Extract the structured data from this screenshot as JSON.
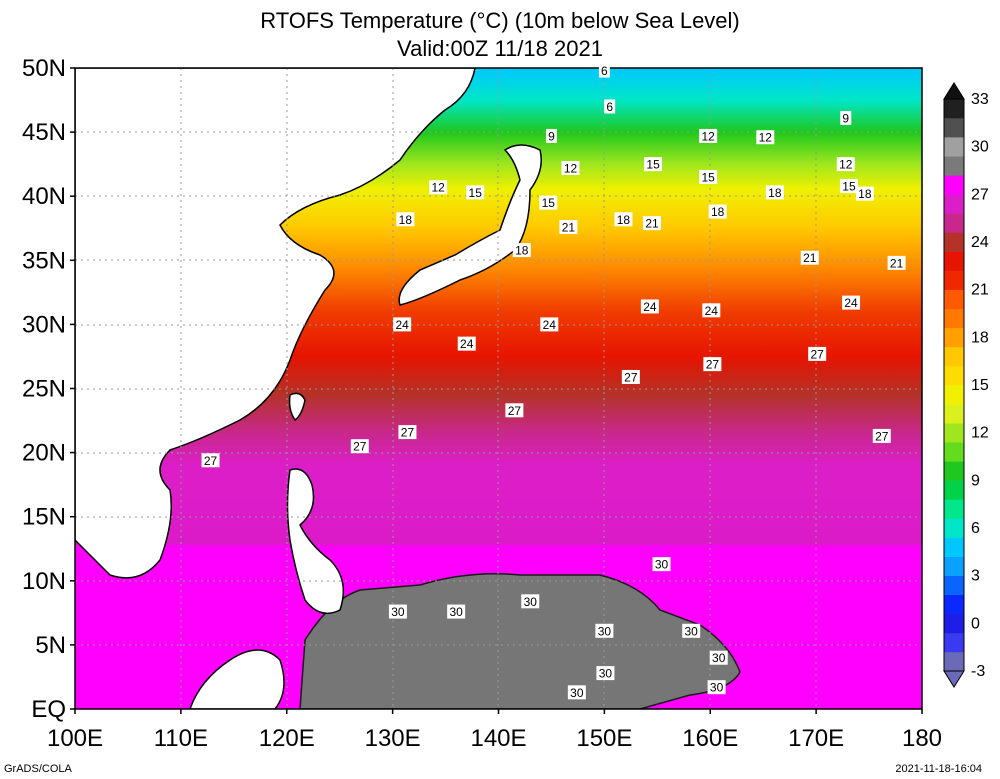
{
  "title": "RTOFS Temperature (°C) (10m below Sea Level)",
  "subtitle": "Valid:00Z 11/18 2021",
  "footer_left": "GrADS/COLA",
  "footer_right": "2021-11-18-16:04",
  "lon_ticks": [
    "100E",
    "110E",
    "120E",
    "130E",
    "140E",
    "150E",
    "160E",
    "170E",
    "180"
  ],
  "lat_ticks": [
    "EQ",
    "5N",
    "10N",
    "15N",
    "20N",
    "25N",
    "30N",
    "35N",
    "40N",
    "45N",
    "50N"
  ],
  "colorbar": {
    "labels": [
      "-3",
      "0",
      "3",
      "6",
      "9",
      "12",
      "15",
      "18",
      "21",
      "24",
      "27",
      "30",
      "33"
    ],
    "colors": [
      "#6a6ab8",
      "#3a3af0",
      "#1e1ee6",
      "#0a28ff",
      "#0a64ff",
      "#0aa0ff",
      "#00c8ff",
      "#00e6c8",
      "#00e68c",
      "#00d24a",
      "#1ec81e",
      "#64dc1e",
      "#a0e61e",
      "#dcf01e",
      "#f0f000",
      "#ffdc00",
      "#ffc800",
      "#ffa000",
      "#ff7800",
      "#ff5a00",
      "#f02800",
      "#e61400",
      "#b43228",
      "#c8288c",
      "#dc1ec8",
      "#ff00ff",
      "#7a7a7a",
      "#a0a0a0",
      "#505050",
      "#202020"
    ]
  },
  "contour_labels": [
    {
      "text": "6",
      "lon": 150.0,
      "lat": 49.8
    },
    {
      "text": "6",
      "lon": 150.5,
      "lat": 47.0
    },
    {
      "text": "9",
      "lon": 172.8,
      "lat": 46.1
    },
    {
      "text": "9",
      "lon": 145.0,
      "lat": 44.7
    },
    {
      "text": "12",
      "lon": 159.8,
      "lat": 44.7
    },
    {
      "text": "12",
      "lon": 165.2,
      "lat": 44.6
    },
    {
      "text": "12",
      "lon": 146.8,
      "lat": 42.2
    },
    {
      "text": "12",
      "lon": 172.8,
      "lat": 42.5
    },
    {
      "text": "12",
      "lon": 134.3,
      "lat": 40.7
    },
    {
      "text": "15",
      "lon": 154.6,
      "lat": 42.5
    },
    {
      "text": "15",
      "lon": 159.8,
      "lat": 41.5
    },
    {
      "text": "15",
      "lon": 137.8,
      "lat": 40.3
    },
    {
      "text": "15",
      "lon": 173.1,
      "lat": 40.8
    },
    {
      "text": "15",
      "lon": 144.7,
      "lat": 39.5
    },
    {
      "text": "18",
      "lon": 166.1,
      "lat": 40.3
    },
    {
      "text": "18",
      "lon": 174.6,
      "lat": 40.2
    },
    {
      "text": "18",
      "lon": 160.7,
      "lat": 38.8
    },
    {
      "text": "18",
      "lon": 151.8,
      "lat": 38.2
    },
    {
      "text": "18",
      "lon": 131.2,
      "lat": 38.2
    },
    {
      "text": "18",
      "lon": 142.2,
      "lat": 35.8
    },
    {
      "text": "21",
      "lon": 146.6,
      "lat": 37.6
    },
    {
      "text": "21",
      "lon": 154.5,
      "lat": 37.9
    },
    {
      "text": "21",
      "lon": 169.4,
      "lat": 35.2
    },
    {
      "text": "21",
      "lon": 177.6,
      "lat": 34.8
    },
    {
      "text": "24",
      "lon": 173.3,
      "lat": 31.7
    },
    {
      "text": "24",
      "lon": 154.3,
      "lat": 31.4
    },
    {
      "text": "24",
      "lon": 160.1,
      "lat": 31.1
    },
    {
      "text": "24",
      "lon": 144.8,
      "lat": 30.0
    },
    {
      "text": "24",
      "lon": 130.9,
      "lat": 30.0
    },
    {
      "text": "24",
      "lon": 137.0,
      "lat": 28.5
    },
    {
      "text": "27",
      "lon": 170.1,
      "lat": 27.7
    },
    {
      "text": "27",
      "lon": 160.2,
      "lat": 26.9
    },
    {
      "text": "27",
      "lon": 152.5,
      "lat": 25.9
    },
    {
      "text": "27",
      "lon": 141.5,
      "lat": 23.3
    },
    {
      "text": "27",
      "lon": 131.4,
      "lat": 21.6
    },
    {
      "text": "27",
      "lon": 126.9,
      "lat": 20.5
    },
    {
      "text": "27",
      "lon": 176.2,
      "lat": 21.3
    },
    {
      "text": "27",
      "lon": 112.8,
      "lat": 19.4
    },
    {
      "text": "30",
      "lon": 155.4,
      "lat": 11.3
    },
    {
      "text": "30",
      "lon": 143.0,
      "lat": 8.4
    },
    {
      "text": "30",
      "lon": 130.5,
      "lat": 7.6
    },
    {
      "text": "30",
      "lon": 136.0,
      "lat": 7.6
    },
    {
      "text": "30",
      "lon": 150.0,
      "lat": 6.1
    },
    {
      "text": "30",
      "lon": 158.2,
      "lat": 6.1
    },
    {
      "text": "30",
      "lon": 160.8,
      "lat": 4.0
    },
    {
      "text": "30",
      "lon": 150.1,
      "lat": 2.8
    },
    {
      "text": "30",
      "lon": 147.4,
      "lat": 1.3
    },
    {
      "text": "30",
      "lon": 160.6,
      "lat": 1.7
    }
  ]
}
